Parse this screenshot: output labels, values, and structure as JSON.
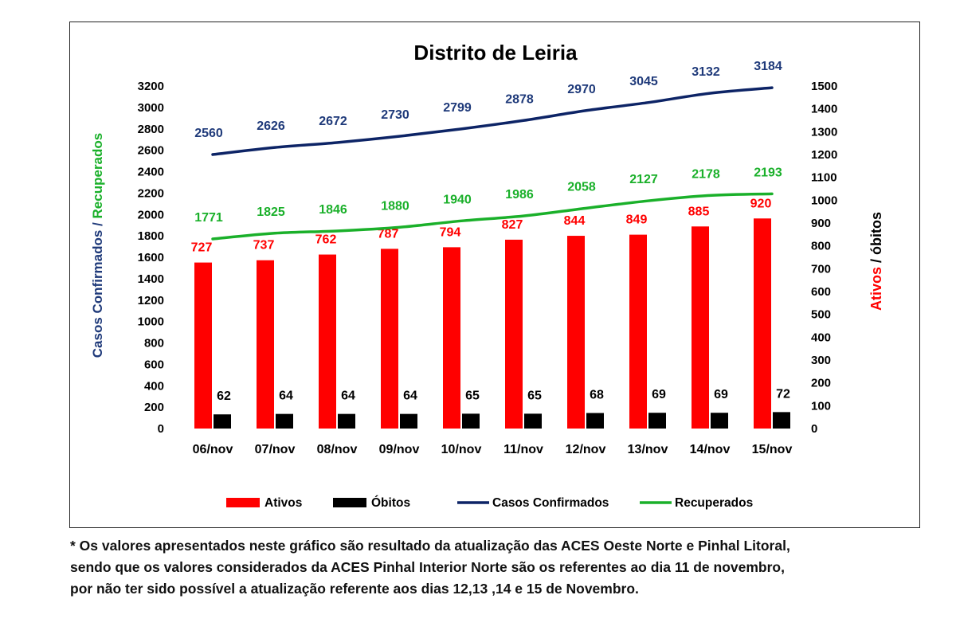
{
  "chart_data": {
    "type": "bar",
    "title": "Distrito de Leiria",
    "categories": [
      "06/nov",
      "07/nov",
      "08/nov",
      "09/nov",
      "10/nov",
      "11/nov",
      "12/nov",
      "13/nov",
      "14/nov",
      "15/nov"
    ],
    "left_axis": {
      "label_part1": "Casos Confirmados /",
      "label_part2": "Recuperados",
      "ylim": [
        0,
        3200
      ],
      "ticks": [
        0,
        200,
        400,
        600,
        800,
        1000,
        1200,
        1400,
        1600,
        1800,
        2000,
        2200,
        2400,
        2600,
        2800,
        3000,
        3200
      ]
    },
    "right_axis": {
      "label_part1": "Ativos",
      "label_part2": "/ óbitos",
      "ylim": [
        0,
        1500
      ],
      "ticks": [
        0,
        100,
        200,
        300,
        400,
        500,
        600,
        700,
        800,
        900,
        1000,
        1100,
        1200,
        1300,
        1400,
        1500
      ]
    },
    "series": [
      {
        "name": "Ativos",
        "kind": "bar",
        "axis": "right",
        "color": "#ff0000",
        "label_color": "#ff0000",
        "values": [
          727,
          737,
          762,
          787,
          794,
          827,
          844,
          849,
          885,
          920
        ]
      },
      {
        "name": "Óbitos",
        "kind": "bar",
        "axis": "right",
        "color": "#000000",
        "label_color": "#000000",
        "values": [
          62,
          64,
          64,
          64,
          65,
          65,
          68,
          69,
          69,
          72
        ]
      },
      {
        "name": "Casos Confirmados",
        "kind": "line",
        "axis": "left",
        "color": "#0d2466",
        "label_color": "#1f3a7a",
        "values": [
          2560,
          2626,
          2672,
          2730,
          2799,
          2878,
          2970,
          3045,
          3132,
          3184
        ]
      },
      {
        "name": "Recuperados",
        "kind": "line",
        "axis": "left",
        "color": "#1ab02a",
        "label_color": "#1ab02a",
        "values": [
          1771,
          1825,
          1846,
          1880,
          1940,
          1986,
          2058,
          2127,
          2178,
          2193
        ]
      }
    ],
    "legend": {
      "position": "bottom"
    },
    "grid": false
  },
  "footnote": [
    "* Os valores apresentados neste gráfico são resultado da atualização das ACES Oeste Norte e Pinhal Litoral,",
    "sendo que os valores considerados da ACES Pinhal Interior Norte são os referentes ao dia 11 de novembro,",
    "por não ter sido possível a atualização referente aos dias 12,13 ,14 e 15 de Novembro."
  ]
}
